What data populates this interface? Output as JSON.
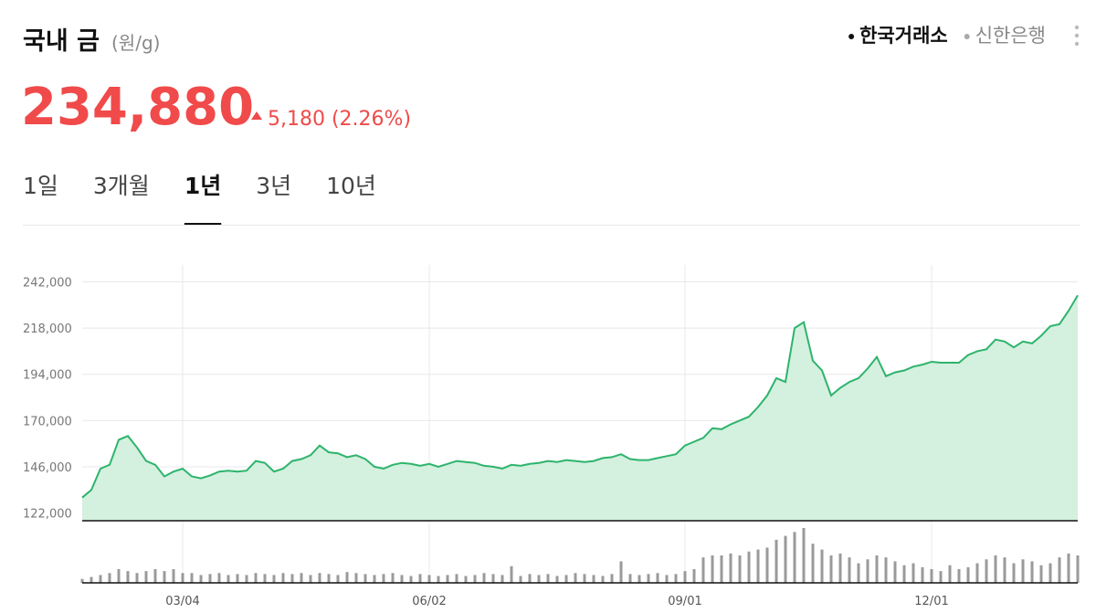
{
  "header": {
    "title": "국내 금",
    "unit": "(원/g)",
    "sources": [
      {
        "label": "한국거래소",
        "active": true
      },
      {
        "label": "신한은행",
        "active": false
      }
    ]
  },
  "price": {
    "value": "234,880",
    "change": "5,180 (2.26%)"
  },
  "tabs": [
    {
      "label": "1일",
      "active": false
    },
    {
      "label": "3개월",
      "active": false
    },
    {
      "label": "1년",
      "active": true
    },
    {
      "label": "3년",
      "active": false
    },
    {
      "label": "10년",
      "active": false
    }
  ],
  "chart_data": {
    "type": "area",
    "color": "#2db46c",
    "fill": "#d4f0df",
    "grid": true,
    "categories": [
      null,
      null,
      null,
      null,
      null,
      null,
      null,
      null,
      null,
      null,
      null,
      "03/04",
      null,
      null,
      null,
      null,
      null,
      null,
      null,
      null,
      null,
      null,
      null,
      null,
      null,
      null,
      null,
      null,
      null,
      null,
      null,
      null,
      null,
      null,
      null,
      null,
      null,
      null,
      "06/02",
      null,
      null,
      null,
      null,
      null,
      null,
      null,
      null,
      null,
      null,
      null,
      null,
      null,
      null,
      null,
      null,
      null,
      null,
      null,
      null,
      null,
      null,
      null,
      null,
      null,
      null,
      null,
      "09/01",
      null,
      null,
      null,
      null,
      null,
      null,
      null,
      null,
      null,
      null,
      null,
      null,
      null,
      null,
      null,
      null,
      null,
      null,
      null,
      null,
      null,
      null,
      null,
      null,
      null,
      null,
      "12/01",
      null,
      null,
      null,
      null,
      null,
      null,
      null,
      null,
      null,
      null,
      null,
      null,
      null,
      null,
      null,
      null
    ],
    "values": [
      130000,
      134000,
      145000,
      147000,
      160000,
      162000,
      156000,
      149000,
      147000,
      141000,
      143500,
      145000,
      141000,
      140000,
      141500,
      143500,
      144000,
      143500,
      144000,
      149000,
      148000,
      143500,
      145000,
      149000,
      150000,
      152000,
      157000,
      153500,
      153000,
      151000,
      152000,
      150000,
      146000,
      145000,
      147000,
      148000,
      147500,
      146500,
      147500,
      146000,
      147500,
      149000,
      148500,
      148000,
      146500,
      146000,
      145000,
      147000,
      146500,
      147500,
      148000,
      149000,
      148500,
      149500,
      149000,
      148500,
      149000,
      150500,
      151000,
      152500,
      150000,
      149500,
      149500,
      150500,
      151500,
      152500,
      157000,
      159000,
      161000,
      166000,
      165500,
      168000,
      170000,
      172000,
      177000,
      183000,
      192000,
      190000,
      218000,
      221000,
      201000,
      196000,
      183000,
      187000,
      190000,
      192000,
      197000,
      203000,
      193000,
      195000,
      196000,
      198000,
      199000,
      200500,
      200000,
      200000,
      200000,
      204000,
      206000,
      207000,
      212000,
      211000,
      208000,
      211000,
      210000,
      214000,
      219000,
      220000,
      227000,
      235000
    ],
    "ylim": [
      118000,
      246000
    ],
    "yticks": [
      {
        "value": 122000,
        "label": "122,000"
      },
      {
        "value": 146000,
        "label": "146,000"
      },
      {
        "value": 170000,
        "label": "170,000"
      },
      {
        "value": 194000,
        "label": "194,000"
      },
      {
        "value": 218000,
        "label": "218,000"
      },
      {
        "value": 242000,
        "label": "242,000"
      }
    ],
    "volume": {
      "color": "#9a9a9a",
      "values": [
        4,
        6,
        8,
        10,
        14,
        12,
        10,
        12,
        14,
        12,
        14,
        10,
        10,
        8,
        9,
        10,
        8,
        9,
        8,
        10,
        9,
        8,
        10,
        9,
        10,
        8,
        10,
        9,
        8,
        11,
        10,
        9,
        8,
        9,
        10,
        8,
        7,
        9,
        8,
        7,
        8,
        9,
        7,
        8,
        10,
        9,
        8,
        17,
        7,
        9,
        8,
        9,
        7,
        8,
        10,
        9,
        8,
        7,
        9,
        22,
        9,
        8,
        9,
        10,
        8,
        9,
        12,
        14,
        26,
        28,
        28,
        30,
        28,
        32,
        34,
        36,
        44,
        48,
        52,
        56,
        40,
        34,
        28,
        30,
        26,
        20,
        24,
        28,
        26,
        22,
        18,
        20,
        16,
        14,
        12,
        18,
        14,
        16,
        20,
        24,
        28,
        26,
        20,
        24,
        22,
        18,
        20,
        26,
        30,
        28
      ]
    }
  }
}
